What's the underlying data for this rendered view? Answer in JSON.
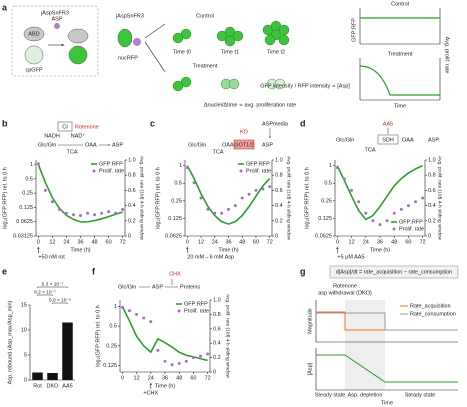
{
  "panels": {
    "labels": [
      "a",
      "b",
      "c",
      "d",
      "e",
      "f",
      "g"
    ],
    "a": {
      "sensor": "jAspSnFR3",
      "abd": "ABD",
      "asp": "ASP",
      "cpgfp": "cpGFP",
      "sensor2": "jAspSnFR3",
      "nuc": "nucRFP",
      "control": "Control",
      "treatment": "Treatment",
      "t0": "Time t0",
      "t1": "Time t1",
      "t2": "Time t2",
      "gfprfp": "GFP:RFP",
      "prolif": "Avg. prolif. rate",
      "time": "Time",
      "plot_control": "Control",
      "plot_treatment": "Treatment",
      "ratio": "GFP intensity / RFP intensity ∝ [Asp]",
      "nuclei": "Δnuclei/Δtime ∝ avg. proliferation rate"
    },
    "b": [
      "CI",
      "Rotenone",
      "NADH",
      "NAD⁺",
      "Glc/Gln",
      "TCA",
      "OAA",
      "ASP"
    ],
    "c": [
      "ASPmedia",
      "KO",
      "Glc/Gln",
      "TCA",
      "OAA",
      "GOT1/2",
      "ASP"
    ],
    "d": [
      "AA5",
      "Glc/Gln",
      "SDH",
      "TCA",
      "OAA",
      "ASP"
    ],
    "f": [
      "CHX",
      "Glc/Gln",
      "ASP",
      "Proteins"
    ],
    "g": {
      "eq": "d[Asp]/dt = rate_acquisition − rate_consumption",
      "event1": "Rotenone",
      "event2": "asp withdrawal (DKO)",
      "magnitude": "Magnitude",
      "acq": "Rate_acquisition",
      "cons": "Rate_consumption",
      "asp": "[Asp]",
      "s1": "Steady state",
      "s2": "Asp. depletion",
      "s3": "Steady state",
      "time": "Time"
    }
  },
  "chart_data": [
    {
      "type": "line",
      "xlabel": "Time (h)",
      "ylabel": "log₂(GFP:RFP) rel. to 0 h",
      "y2label": "Avg. prolif. rate (1/d) 4-h sliding window",
      "yscale": "log",
      "legend": "upper right",
      "annotation": {
        "text": "+50 nM rot",
        "x": 0
      },
      "x": [
        0,
        6,
        12,
        18,
        24,
        30,
        36,
        42,
        48,
        54,
        60,
        66,
        72
      ],
      "xlim": [
        -2,
        74
      ],
      "xticks": [
        0,
        12,
        24,
        36,
        48,
        60,
        72
      ],
      "ylim": [
        0.03125,
        1.25
      ],
      "yticks": [
        1,
        0.5,
        0.25,
        0.125,
        0.0625,
        0.03125
      ],
      "y2lim": [
        0,
        1
      ],
      "y2ticks": [
        0,
        0.2,
        0.4,
        0.6,
        0.8,
        {
          "value": 1,
          "label": "1.0"
        }
      ],
      "series": [
        {
          "name": "GFP:RFP",
          "color": "#2e9e2e",
          "mode": "line",
          "values": [
            1,
            0.42,
            0.2,
            0.12,
            0.085,
            0.07,
            0.062,
            0.062,
            0.066,
            0.072,
            0.08,
            0.09,
            0.1
          ]
        },
        {
          "name": "Prolif. rate",
          "color": "#a070c8",
          "mode": "markers",
          "axis": "y2",
          "values": [
            0.95,
            0.6,
            0.45,
            0.35,
            0.3,
            0.28,
            0.27,
            0.3,
            0.28,
            0.3,
            0.32,
            0.3,
            0.35
          ]
        }
      ]
    },
    {
      "type": "line",
      "xlabel": "Time (h)",
      "ylabel": "log₂(GFP:RFP) rel. to 0 h",
      "y2label": "Avg. prolif. rate (1/d) 4-h sliding window",
      "yscale": "log",
      "legend": "upper right",
      "annotation": {
        "text": "20 mM→6 mM Asp",
        "x": 0
      },
      "x": [
        0,
        6,
        12,
        18,
        24,
        30,
        36,
        42,
        48,
        54,
        60,
        66,
        72
      ],
      "xlim": [
        -2,
        74
      ],
      "xticks": [
        0,
        12,
        24,
        36,
        48,
        60,
        72
      ],
      "ylim": [
        0.0625,
        1.25
      ],
      "yticks": [
        1,
        0.5,
        0.25,
        0.125,
        0.0625
      ],
      "y2lim": [
        0,
        1
      ],
      "y2ticks": [
        0,
        0.2,
        0.4,
        0.6,
        0.8,
        {
          "value": 1,
          "label": "1.0"
        }
      ],
      "series": [
        {
          "name": "GFP:RFP",
          "color": "#2e9e2e",
          "mode": "line",
          "values": [
            1,
            0.6,
            0.33,
            0.2,
            0.14,
            0.11,
            0.1,
            0.11,
            0.14,
            0.2,
            0.3,
            0.45,
            0.6
          ]
        },
        {
          "name": "Prolif. rate",
          "color": "#a070c8",
          "mode": "markers",
          "axis": "y2",
          "values": [
            0.9,
            0.7,
            0.5,
            0.35,
            0.3,
            0.3,
            0.35,
            0.4,
            0.5,
            0.55,
            0.6,
            0.62,
            0.65
          ]
        }
      ]
    },
    {
      "type": "line",
      "xlabel": "Time (h)",
      "ylabel": "log₂(GFP:RFP) rel. to 0 h",
      "y2label": "Avg. prolif. rate (1/d) 4-h sliding window",
      "yscale": "log",
      "legend": "lower right",
      "annotation": {
        "text": "+5 μM AA5",
        "x": 0
      },
      "x": [
        0,
        6,
        12,
        18,
        24,
        30,
        36,
        42,
        48,
        54,
        60,
        66,
        72
      ],
      "xlim": [
        -2,
        74
      ],
      "xticks": [
        0,
        12,
        24,
        36,
        48,
        60,
        72
      ],
      "ylim": [
        0.0625,
        1.25
      ],
      "yticks": [
        1,
        0.5,
        0.25,
        0.125,
        0.0625
      ],
      "y2lim": [
        0,
        1
      ],
      "y2ticks": [
        0,
        0.2,
        0.4,
        0.6,
        0.8,
        {
          "value": 1,
          "label": "1.0"
        }
      ],
      "series": [
        {
          "name": "GFP:RFP",
          "color": "#2e9e2e",
          "mode": "line",
          "values": [
            1,
            0.55,
            0.3,
            0.17,
            0.12,
            0.14,
            0.2,
            0.3,
            0.45,
            0.6,
            0.75,
            0.88,
            1
          ]
        },
        {
          "name": "Prolif. rate",
          "color": "#a070c8",
          "mode": "markers",
          "axis": "y2",
          "values": [
            0.9,
            0.75,
            0.6,
            0.45,
            0.3,
            0.2,
            0.15,
            0.2,
            0.3,
            0.35,
            0.4,
            0.45,
            0.5
          ]
        }
      ]
    },
    {
      "type": "bar",
      "ylabel": "Asp. rebound (Asp_max/Asp_min)",
      "categories": [
        "Rot",
        "DKO",
        "AA5"
      ],
      "values": [
        1.5,
        1.4,
        11.5
      ],
      "color": "#111111",
      "ylim": [
        0,
        15
      ],
      "yticks": [
        0,
        5,
        10,
        15
      ],
      "annotations": [
        "5.3 × 10⁻⁷",
        "8.2 × 10⁻⁷",
        "5.0 × 10⁻⁶"
      ]
    },
    {
      "type": "line",
      "xlabel": "Time (h)",
      "ylabel": "log₂(GFP:RFP) rel. to 0 h",
      "y2label": "Avg. prolif. rate (1/d) 4-h sliding window",
      "yscale": "log",
      "legend": "upper right",
      "annotation": {
        "text": "+CHX",
        "x": 24
      },
      "x": [
        0,
        6,
        12,
        18,
        24,
        30,
        36,
        42,
        48,
        54,
        60,
        66,
        72
      ],
      "xlim": [
        -2,
        74
      ],
      "xticks": [
        0,
        12,
        24,
        36,
        48,
        60,
        72
      ],
      "ylim": [
        0.1,
        1.25
      ],
      "yticks": [
        1,
        0.5,
        0.25,
        0.125
      ],
      "y2lim": [
        0,
        1
      ],
      "y2ticks": [
        0,
        0.2,
        0.4,
        0.6,
        0.8,
        {
          "value": 1,
          "label": "1.0"
        }
      ],
      "series": [
        {
          "name": "GFP:RFP",
          "color": "#2e9e2e",
          "mode": "line",
          "values": [
            1,
            0.6,
            0.35,
            0.25,
            0.2,
            0.32,
            0.28,
            0.24,
            0.2,
            0.18,
            0.17,
            0.16,
            0.15
          ]
        },
        {
          "name": "Prolif. rate",
          "color": "#a070c8",
          "mode": "markers",
          "axis": "y2",
          "values": [
            0.9,
            0.85,
            0.8,
            0.75,
            0.7,
            0.3,
            0.15,
            0.1,
            0.12,
            0.15,
            0.2,
            0.22,
            0.25
          ]
        }
      ]
    }
  ]
}
